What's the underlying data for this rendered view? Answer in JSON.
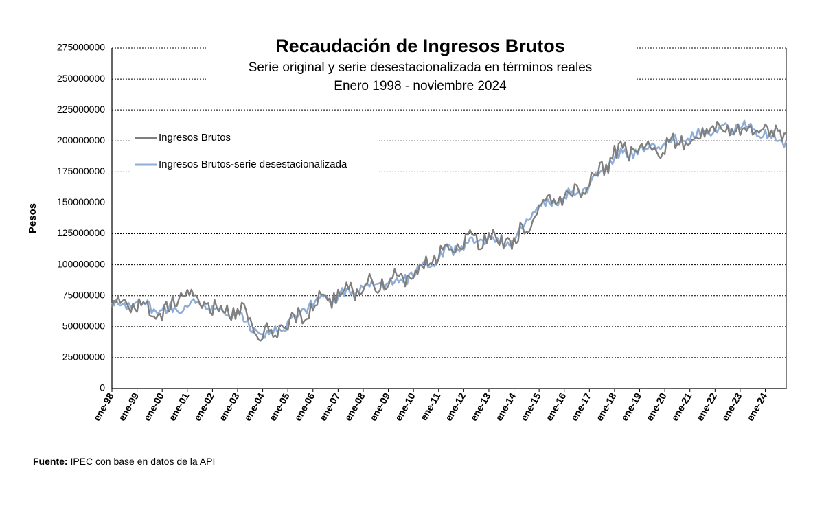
{
  "chart_data": {
    "type": "line",
    "title": "Recaudación de Ingresos Brutos",
    "subtitle_1": "Serie original y serie desestacionalizada en términos reales",
    "subtitle_2": "Enero 1998 - noviembre 2024",
    "ylabel": "Pesos",
    "xlabel": "",
    "ylim": [
      0,
      275000000
    ],
    "y_ticks": [
      "0",
      "25000000",
      "50000000",
      "75000000",
      "100000000",
      "125000000",
      "150000000",
      "175000000",
      "200000000",
      "225000000",
      "250000000",
      "275000000"
    ],
    "x_tick_labels": [
      "ene-98",
      "ene-99",
      "ene-00",
      "ene-01",
      "ene-02",
      "ene-03",
      "ene-04",
      "ene-05",
      "ene-06",
      "ene-07",
      "ene-08",
      "ene-09",
      "ene-10",
      "ene-11",
      "ene-12",
      "ene-13",
      "ene-14",
      "ene-15",
      "ene-16",
      "ene-17",
      "ene-18",
      "ene-19",
      "ene-20",
      "ene-21",
      "ene-22",
      "ene-23",
      "ene-24"
    ],
    "x_range": [
      "ene-98",
      "nov-24"
    ],
    "grid": "horizontal dotted",
    "legend_position": "top-left",
    "x_months": [
      0,
      12,
      24,
      36,
      48,
      60,
      72,
      84,
      96,
      108,
      120,
      132,
      144,
      156,
      168,
      180,
      192,
      204,
      216,
      228,
      240,
      252,
      264,
      276,
      288,
      300,
      312,
      322
    ],
    "series": [
      {
        "name": "Ingresos Brutos",
        "color": "#7f7f7f",
        "values": [
          65000000,
          68000000,
          60000000,
          80000000,
          64000000,
          64000000,
          43000000,
          50000000,
          68000000,
          75000000,
          83000000,
          86000000,
          93000000,
          108000000,
          118000000,
          122000000,
          118000000,
          145000000,
          155000000,
          165000000,
          190000000,
          193000000,
          195000000,
          203000000,
          210000000,
          210000000,
          207000000,
          205000000
        ],
        "notes_values": []
      },
      {
        "name": "Ingresos Brutos-serie desestacionalizada",
        "color": "#8eaed8",
        "values": [
          66000000,
          69000000,
          62000000,
          68000000,
          65000000,
          60000000,
          42000000,
          52000000,
          70000000,
          74000000,
          82000000,
          85000000,
          92000000,
          107000000,
          116000000,
          120000000,
          120000000,
          147000000,
          155000000,
          164000000,
          188000000,
          192000000,
          197000000,
          204000000,
          209000000,
          212000000,
          205000000,
          198000000
        ]
      }
    ]
  },
  "source": {
    "label": "Fuente:",
    "text": "IPEC con base en datos de la API"
  }
}
